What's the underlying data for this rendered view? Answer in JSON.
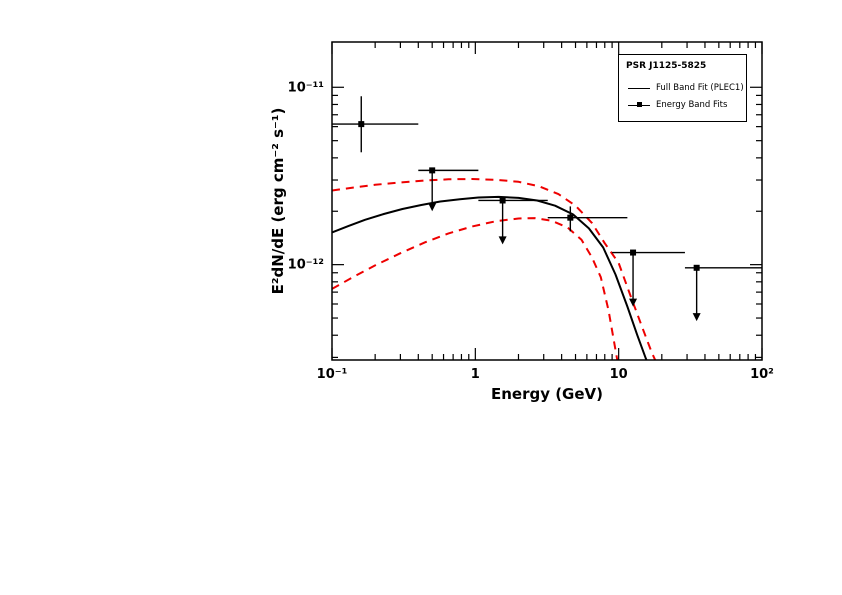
{
  "page": {
    "background": "#ffffff"
  },
  "chart_data": {
    "type": "scatter",
    "title": "",
    "xlabel": "Energy (GeV)",
    "ylabel": "E²dN/dE (erg cm⁻² s⁻¹)",
    "xscale": "log",
    "yscale": "log",
    "xlim": [
      0.1,
      100
    ],
    "ylim": [
      2.9e-13,
      1.8e-11
    ],
    "grid": false,
    "x_ticks": [
      {
        "value": 0.1,
        "label": "10⁻¹"
      },
      {
        "value": 1,
        "label": "1"
      },
      {
        "value": 10,
        "label": "10"
      },
      {
        "value": 100,
        "label": "10²"
      }
    ],
    "y_ticks": [
      {
        "value": 1e-12,
        "label": "10⁻¹²"
      },
      {
        "value": 1e-11,
        "label": "10⁻¹¹"
      }
    ],
    "legend": {
      "position": "top-right",
      "border": true,
      "title": "PSR J1125-5825",
      "entries": [
        {
          "label": "Full Band Fit (PLEC1)",
          "sample": "line",
          "color": "#000000"
        },
        {
          "label": "Energy Band Fits",
          "sample": "square-marker-with-line",
          "color": "#000000"
        }
      ]
    },
    "series": [
      {
        "name": "Full Band Fit (PLEC1)",
        "type": "line",
        "style": "solid",
        "color": "#000000",
        "width": 2,
        "points": [
          [
            0.1,
            1.52e-12
          ],
          [
            0.13,
            1.65e-12
          ],
          [
            0.17,
            1.79e-12
          ],
          [
            0.23,
            1.93e-12
          ],
          [
            0.31,
            2.06e-12
          ],
          [
            0.42,
            2.17e-12
          ],
          [
            0.57,
            2.27e-12
          ],
          [
            0.78,
            2.34e-12
          ],
          [
            1.05,
            2.39e-12
          ],
          [
            1.45,
            2.41e-12
          ],
          [
            2.0,
            2.38e-12
          ],
          [
            2.7,
            2.3e-12
          ],
          [
            3.6,
            2.15e-12
          ],
          [
            4.8,
            1.92e-12
          ],
          [
            6.2,
            1.6e-12
          ],
          [
            7.8,
            1.25e-12
          ],
          [
            9.5,
            8.8e-13
          ],
          [
            11.5,
            5.8e-13
          ],
          [
            13.5,
            4e-13
          ],
          [
            15.5,
            2.95e-13
          ],
          [
            17.0,
            2.5e-13
          ]
        ]
      },
      {
        "name": "Fit confidence band (upper, dashed)",
        "type": "line",
        "style": "dashed",
        "color": "#ee0000",
        "width": 2,
        "points": [
          [
            0.1,
            2.62e-12
          ],
          [
            0.14,
            2.72e-12
          ],
          [
            0.2,
            2.82e-12
          ],
          [
            0.3,
            2.91e-12
          ],
          [
            0.45,
            2.98e-12
          ],
          [
            0.65,
            3.03e-12
          ],
          [
            0.95,
            3.04e-12
          ],
          [
            1.4,
            3.01e-12
          ],
          [
            2.0,
            2.93e-12
          ],
          [
            2.8,
            2.76e-12
          ],
          [
            3.8,
            2.5e-12
          ],
          [
            5.0,
            2.15e-12
          ],
          [
            6.5,
            1.72e-12
          ],
          [
            8.0,
            1.32e-12
          ],
          [
            10.0,
            1.02e-12
          ],
          [
            12.0,
            6.8e-13
          ],
          [
            14.5,
            4.5e-13
          ],
          [
            17.0,
            3.2e-13
          ],
          [
            20.0,
            2.4e-13
          ]
        ]
      },
      {
        "name": "Fit confidence band (lower, dashed)",
        "type": "line",
        "style": "dashed",
        "color": "#ee0000",
        "width": 2,
        "points": [
          [
            0.1,
            7.3e-13
          ],
          [
            0.14,
            8.5e-13
          ],
          [
            0.2,
            9.9e-13
          ],
          [
            0.3,
            1.16e-12
          ],
          [
            0.45,
            1.34e-12
          ],
          [
            0.65,
            1.5e-12
          ],
          [
            0.95,
            1.64e-12
          ],
          [
            1.4,
            1.76e-12
          ],
          [
            2.0,
            1.82e-12
          ],
          [
            2.6,
            1.83e-12
          ],
          [
            3.4,
            1.77e-12
          ],
          [
            4.4,
            1.62e-12
          ],
          [
            5.5,
            1.38e-12
          ],
          [
            6.5,
            1.1e-12
          ],
          [
            7.5,
            8.5e-13
          ],
          [
            8.5,
            5.5e-13
          ],
          [
            9.5,
            3.3e-13
          ],
          [
            10.2,
            2.4e-13
          ]
        ]
      }
    ],
    "data_points": {
      "name": "Energy Band Fits",
      "marker": "filled-square",
      "color": "#000000",
      "points": [
        {
          "E": 0.16,
          "E_lo": 0.1,
          "E_hi": 0.4,
          "flux": 6.2e-12,
          "flux_lo": 4.3e-12,
          "flux_hi": 8.9e-12,
          "upper_limit": false
        },
        {
          "E": 0.5,
          "E_lo": 0.4,
          "E_hi": 1.05,
          "flux": 3.4e-12,
          "arrow_tip": 2e-12,
          "upper_limit": true
        },
        {
          "E": 1.55,
          "E_lo": 1.05,
          "E_hi": 3.2,
          "flux": 2.3e-12,
          "arrow_tip": 1.3e-12,
          "upper_limit": true
        },
        {
          "E": 4.6,
          "E_lo": 3.2,
          "E_hi": 11.5,
          "flux": 1.84e-12,
          "flux_lo": 1.54e-12,
          "flux_hi": 2.13e-12,
          "upper_limit": false
        },
        {
          "E": 12.6,
          "E_lo": 9.0,
          "E_hi": 29.0,
          "flux": 1.17e-12,
          "arrow_tip": 5.8e-13,
          "upper_limit": true
        },
        {
          "E": 35.0,
          "E_lo": 29.0,
          "E_hi": 100.0,
          "flux": 9.6e-13,
          "arrow_tip": 4.8e-13,
          "upper_limit": true
        }
      ]
    }
  }
}
